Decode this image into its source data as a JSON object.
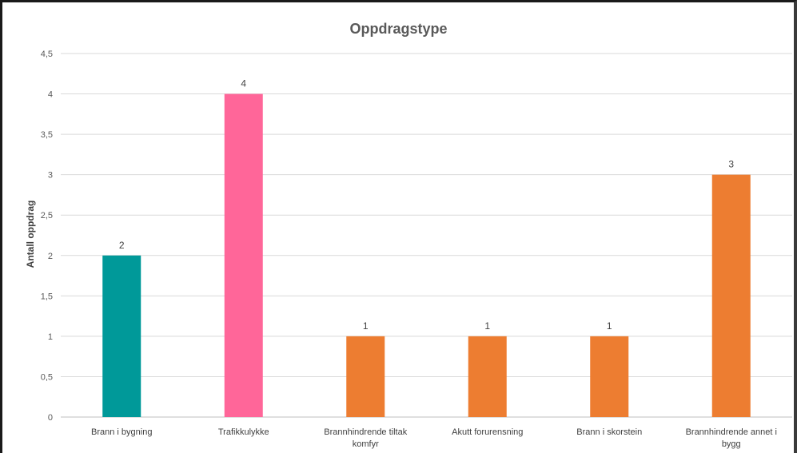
{
  "chart_data": {
    "type": "bar",
    "title": "Oppdragstype",
    "xlabel": "",
    "ylabel": "Antall oppdrag",
    "categories": [
      [
        "Brann i bygning"
      ],
      [
        "Trafikkulykke"
      ],
      [
        "Brannhindrende tiltak",
        "komfyr"
      ],
      [
        "Akutt forurensning"
      ],
      [
        "Brann i skorstein"
      ],
      [
        "Brannhindrende annet i",
        "bygg"
      ]
    ],
    "values": [
      2,
      4,
      1,
      1,
      1,
      3
    ],
    "data_labels": [
      "2",
      "4",
      "1",
      "1",
      "1",
      "3"
    ],
    "bar_colors": [
      "#009999",
      "#FF6699",
      "#ED7D31",
      "#ED7D31",
      "#ED7D31",
      "#ED7D31"
    ],
    "ylim": [
      0,
      4.5
    ],
    "yticks": [
      0,
      0.5,
      1,
      1.5,
      2,
      2.5,
      3,
      3.5,
      4,
      4.5
    ],
    "ytick_labels": [
      "0",
      "0,5",
      "1",
      "1,5",
      "2",
      "2,5",
      "3",
      "3,5",
      "4",
      "4,5"
    ],
    "grid": true,
    "legend": "none"
  }
}
